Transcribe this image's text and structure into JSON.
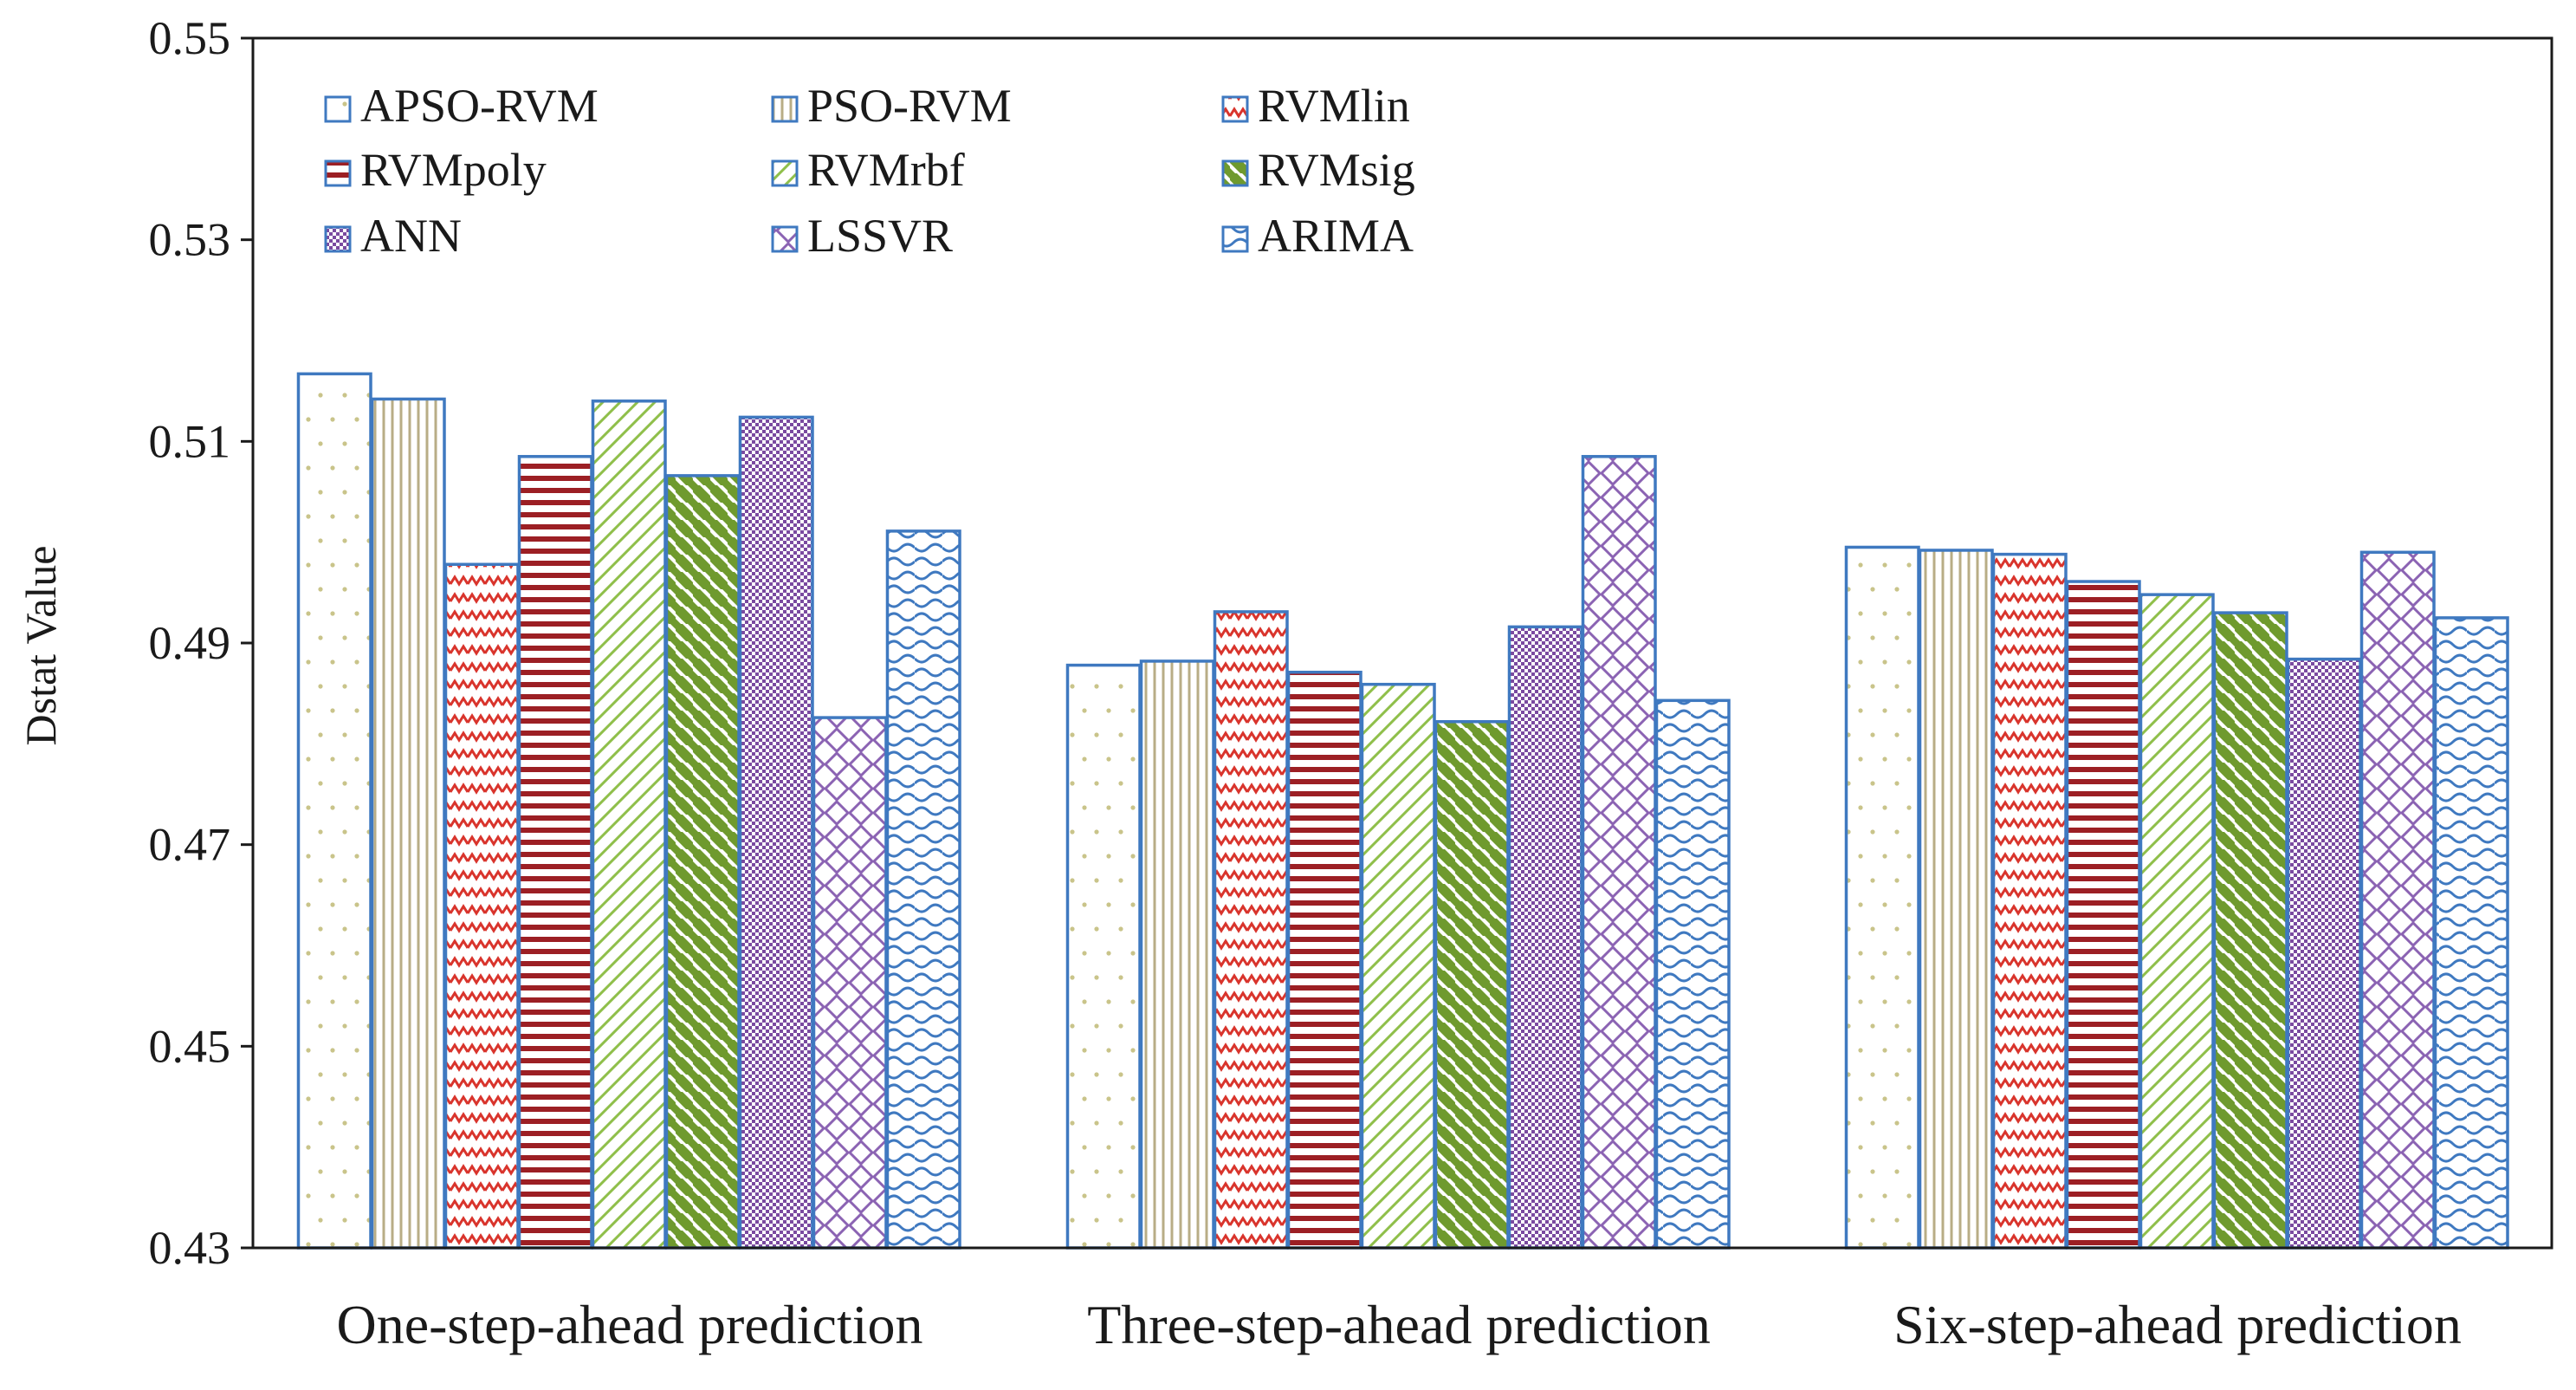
{
  "chart_data": {
    "type": "bar",
    "ylabel": "Dstat Value",
    "xlabel": "",
    "ylim": [
      0.43,
      0.55
    ],
    "yticks": [
      0.43,
      0.45,
      0.47,
      0.49,
      0.51,
      0.53,
      0.55
    ],
    "ytick_labels": [
      "0.43",
      "0.45",
      "0.47",
      "0.49",
      "0.51",
      "0.53",
      "0.55"
    ],
    "grid": false,
    "legend_position": "top-left",
    "categories": [
      "One-step-ahead prediction",
      "Three-step-ahead prediction",
      "Six-step-ahead prediction"
    ],
    "series": [
      {
        "name": "APSO-RVM",
        "values": [
          0.5167,
          0.4878,
          0.4995
        ],
        "pattern": "dots",
        "color": "#c9c48a"
      },
      {
        "name": "PSO-RVM",
        "values": [
          0.5142,
          0.4882,
          0.4992
        ],
        "pattern": "vlines",
        "color": "#b8ad86"
      },
      {
        "name": "RVMlin",
        "values": [
          0.4978,
          0.4931,
          0.4988
        ],
        "pattern": "zigzag",
        "color": "#d9342c"
      },
      {
        "name": "RVMpoly",
        "values": [
          0.5085,
          0.4871,
          0.4961
        ],
        "pattern": "hlines",
        "color": "#9c1f24"
      },
      {
        "name": "RVMrbf",
        "values": [
          0.514,
          0.4859,
          0.4948
        ],
        "pattern": "fdiag",
        "color": "#8fbf4a"
      },
      {
        "name": "RVMsig",
        "values": [
          0.5066,
          0.4822,
          0.493
        ],
        "pattern": "bdiag",
        "color": "#6f9a2e"
      },
      {
        "name": "ANN",
        "values": [
          0.5124,
          0.4916,
          0.4884
        ],
        "pattern": "checker",
        "color": "#7a4aa0"
      },
      {
        "name": "LSSVR",
        "values": [
          0.4826,
          0.5085,
          0.499
        ],
        "pattern": "diamond",
        "color": "#8b63b3"
      },
      {
        "name": "ARIMA",
        "values": [
          0.5011,
          0.4843,
          0.4925
        ],
        "pattern": "wave",
        "color": "#3f79c0"
      }
    ],
    "bar_outline_color": "#3f79c0"
  }
}
